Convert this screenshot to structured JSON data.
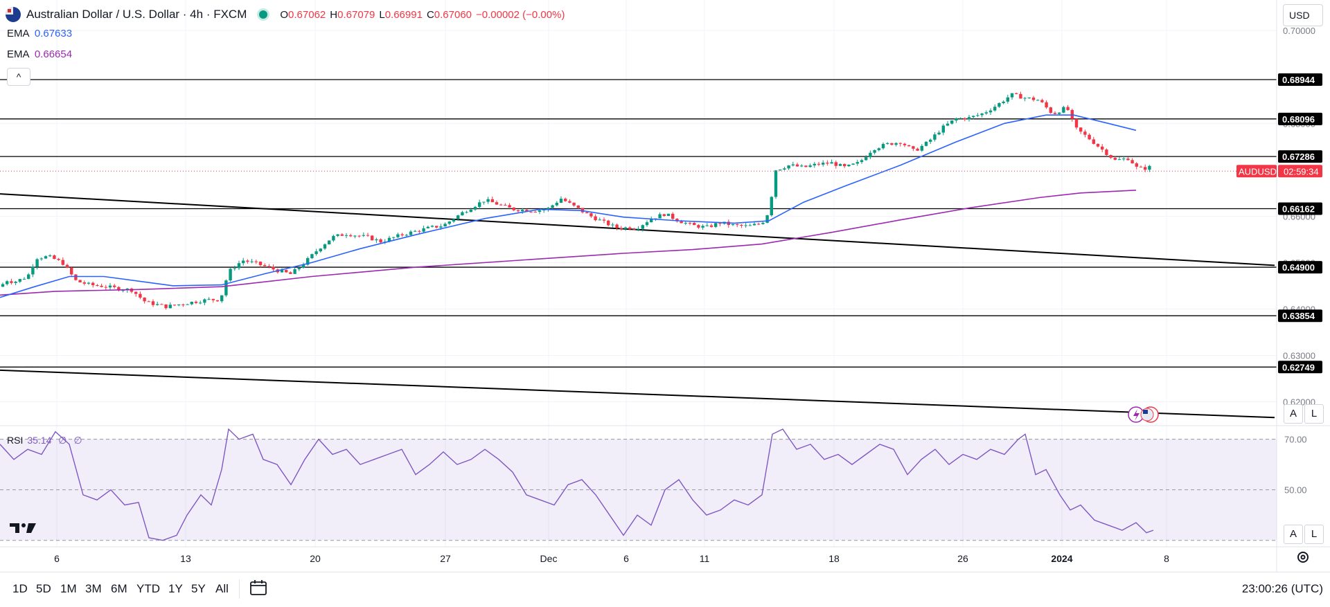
{
  "header": {
    "symbol_title": "Australian Dollar / U.S. Dollar · 4h · FXCM",
    "open_label": "O",
    "open": "0.67062",
    "high_label": "H",
    "high": "0.67079",
    "low_label": "L",
    "low": "0.66991",
    "close_label": "C",
    "close": "0.67060",
    "change": "−0.00002 (−0.00%)",
    "ema1_label": "EMA",
    "ema1_value": "0.67633",
    "ema1_color": "#2962ff",
    "ema2_label": "EMA",
    "ema2_value": "0.66654",
    "ema2_color": "#9c27b0",
    "collapse_glyph": "^",
    "currency": "USD"
  },
  "toolbar": {
    "timeframes": [
      "1D",
      "5D",
      "1M",
      "3M",
      "6M",
      "YTD",
      "1Y",
      "5Y",
      "All"
    ],
    "clock": "23:00:26 (UTC)",
    "auto_label": "A",
    "log_label": "L"
  },
  "rsi": {
    "label": "RSI",
    "value": "35.14",
    "extra1": "∅",
    "extra2": "∅"
  },
  "chart_data": [
    {
      "type": "candlestick",
      "title": "Australian Dollar / U.S. Dollar · 4h · FXCM",
      "x_ticks": [
        "6",
        "13",
        "20",
        "27",
        "Dec",
        "6",
        "11",
        "18",
        "26",
        "2024",
        "8"
      ],
      "y_ticks": [
        "0.70000",
        "0.68000",
        "0.66000",
        "0.65000",
        "0.64000",
        "0.63000",
        "0.62000"
      ],
      "ylim": [
        0.6156,
        0.7048
      ],
      "support_resistance_levels": [
        "0.68944",
        "0.68096",
        "0.67286",
        "0.66162",
        "0.64900",
        "0.63854",
        "0.62749"
      ],
      "current_price_label": "AUDUSD",
      "current_countdown": "02:59:34",
      "current_price": 0.6706,
      "price_path": [
        [
          0,
          0.6448
        ],
        [
          10,
          0.6462
        ],
        [
          20,
          0.6458
        ],
        [
          40,
          0.647
        ],
        [
          52,
          0.651
        ],
        [
          70,
          0.6513
        ],
        [
          90,
          0.65
        ],
        [
          110,
          0.646
        ],
        [
          130,
          0.6452
        ],
        [
          150,
          0.6449
        ],
        [
          170,
          0.6444
        ],
        [
          190,
          0.6441
        ],
        [
          210,
          0.6415
        ],
        [
          240,
          0.6405
        ],
        [
          270,
          0.6413
        ],
        [
          300,
          0.642
        ],
        [
          318,
          0.642
        ],
        [
          330,
          0.648
        ],
        [
          350,
          0.6505
        ],
        [
          370,
          0.6498
        ],
        [
          400,
          0.6483
        ],
        [
          420,
          0.6475
        ],
        [
          440,
          0.65
        ],
        [
          460,
          0.653
        ],
        [
          480,
          0.6555
        ],
        [
          500,
          0.6562
        ],
        [
          530,
          0.6555
        ],
        [
          550,
          0.6545
        ],
        [
          580,
          0.656
        ],
        [
          620,
          0.6575
        ],
        [
          640,
          0.658
        ],
        [
          670,
          0.661
        ],
        [
          700,
          0.6635
        ],
        [
          720,
          0.6625
        ],
        [
          740,
          0.6615
        ],
        [
          770,
          0.6612
        ],
        [
          790,
          0.6615
        ],
        [
          810,
          0.6638
        ],
        [
          830,
          0.662
        ],
        [
          850,
          0.6602
        ],
        [
          870,
          0.6588
        ],
        [
          890,
          0.6575
        ],
        [
          920,
          0.6575
        ],
        [
          940,
          0.6595
        ],
        [
          960,
          0.6605
        ],
        [
          980,
          0.659
        ],
        [
          1000,
          0.658
        ],
        [
          1020,
          0.6576
        ],
        [
          1040,
          0.6586
        ],
        [
          1060,
          0.658
        ],
        [
          1080,
          0.6578
        ],
        [
          1100,
          0.6585
        ],
        [
          1110,
          0.661
        ],
        [
          1120,
          0.67
        ],
        [
          1140,
          0.671
        ],
        [
          1160,
          0.6705
        ],
        [
          1180,
          0.6712
        ],
        [
          1200,
          0.6715
        ],
        [
          1220,
          0.6705
        ],
        [
          1240,
          0.6715
        ],
        [
          1260,
          0.6745
        ],
        [
          1280,
          0.6755
        ],
        [
          1300,
          0.676
        ],
        [
          1320,
          0.674
        ],
        [
          1340,
          0.676
        ],
        [
          1360,
          0.679
        ],
        [
          1380,
          0.681
        ],
        [
          1400,
          0.6812
        ],
        [
          1420,
          0.6822
        ],
        [
          1440,
          0.684
        ],
        [
          1460,
          0.6862
        ],
        [
          1480,
          0.6855
        ],
        [
          1500,
          0.685
        ],
        [
          1520,
          0.682
        ],
        [
          1540,
          0.6835
        ],
        [
          1552,
          0.679
        ],
        [
          1570,
          0.677
        ],
        [
          1590,
          0.6745
        ],
        [
          1610,
          0.672
        ],
        [
          1630,
          0.6725
        ],
        [
          1640,
          0.6705
        ],
        [
          1650,
          0.6702
        ],
        [
          1660,
          0.6706
        ]
      ],
      "ema_fast_path": [
        [
          0,
          0.6425
        ],
        [
          50,
          0.6448
        ],
        [
          100,
          0.647
        ],
        [
          150,
          0.647
        ],
        [
          200,
          0.646
        ],
        [
          250,
          0.645
        ],
        [
          320,
          0.6452
        ],
        [
          380,
          0.6475
        ],
        [
          450,
          0.65
        ],
        [
          520,
          0.653
        ],
        [
          600,
          0.656
        ],
        [
          700,
          0.6595
        ],
        [
          780,
          0.6615
        ],
        [
          840,
          0.6612
        ],
        [
          900,
          0.6598
        ],
        [
          980,
          0.659
        ],
        [
          1060,
          0.6585
        ],
        [
          1110,
          0.659
        ],
        [
          1160,
          0.663
        ],
        [
          1220,
          0.6665
        ],
        [
          1300,
          0.671
        ],
        [
          1380,
          0.676
        ],
        [
          1450,
          0.68
        ],
        [
          1510,
          0.6818
        ],
        [
          1550,
          0.6818
        ],
        [
          1600,
          0.68
        ],
        [
          1640,
          0.6785
        ]
      ],
      "ema_slow_path": [
        [
          0,
          0.643
        ],
        [
          80,
          0.6438
        ],
        [
          200,
          0.6442
        ],
        [
          320,
          0.6448
        ],
        [
          450,
          0.647
        ],
        [
          600,
          0.649
        ],
        [
          750,
          0.6505
        ],
        [
          900,
          0.652
        ],
        [
          1000,
          0.6528
        ],
        [
          1100,
          0.654
        ],
        [
          1200,
          0.6565
        ],
        [
          1300,
          0.6592
        ],
        [
          1400,
          0.6618
        ],
        [
          1500,
          0.664
        ],
        [
          1560,
          0.665
        ],
        [
          1640,
          0.6656
        ]
      ],
      "trendlines": [
        [
          [
            0,
            0.6648
          ],
          [
            1840,
            0.6494
          ]
        ],
        [
          [
            0,
            0.6268
          ],
          [
            1840,
            0.6166
          ]
        ]
      ]
    },
    {
      "type": "line",
      "title": "RSI",
      "y_ticks": [
        "70.00",
        "50.00"
      ],
      "ylim": [
        28,
        74
      ],
      "band": [
        30,
        70
      ],
      "series": [
        {
          "values": [
            [
              0,
              68
            ],
            [
              20,
              62
            ],
            [
              40,
              66
            ],
            [
              60,
              64
            ],
            [
              80,
              73
            ],
            [
              100,
              68
            ],
            [
              120,
              48
            ],
            [
              140,
              46
            ],
            [
              160,
              50
            ],
            [
              180,
              44
            ],
            [
              200,
              45
            ],
            [
              215,
              31
            ],
            [
              235,
              30
            ],
            [
              255,
              32
            ],
            [
              270,
              40
            ],
            [
              290,
              48
            ],
            [
              305,
              44
            ],
            [
              320,
              58
            ],
            [
              330,
              74
            ],
            [
              345,
              70
            ],
            [
              365,
              72
            ],
            [
              380,
              62
            ],
            [
              400,
              60
            ],
            [
              420,
              52
            ],
            [
              440,
              62
            ],
            [
              460,
              70
            ],
            [
              480,
              64
            ],
            [
              500,
              66
            ],
            [
              520,
              60
            ],
            [
              540,
              62
            ],
            [
              560,
              64
            ],
            [
              580,
              66
            ],
            [
              600,
              56
            ],
            [
              620,
              60
            ],
            [
              640,
              65
            ],
            [
              660,
              60
            ],
            [
              680,
              62
            ],
            [
              700,
              66
            ],
            [
              720,
              62
            ],
            [
              740,
              57
            ],
            [
              760,
              48
            ],
            [
              780,
              46
            ],
            [
              800,
              44
            ],
            [
              820,
              52
            ],
            [
              840,
              54
            ],
            [
              860,
              48
            ],
            [
              880,
              40
            ],
            [
              900,
              32
            ],
            [
              920,
              40
            ],
            [
              940,
              36
            ],
            [
              960,
              50
            ],
            [
              980,
              54
            ],
            [
              1000,
              46
            ],
            [
              1020,
              40
            ],
            [
              1040,
              42
            ],
            [
              1060,
              46
            ],
            [
              1080,
              44
            ],
            [
              1100,
              48
            ],
            [
              1115,
              72
            ],
            [
              1130,
              74
            ],
            [
              1150,
              66
            ],
            [
              1170,
              68
            ],
            [
              1190,
              62
            ],
            [
              1210,
              64
            ],
            [
              1230,
              60
            ],
            [
              1250,
              64
            ],
            [
              1270,
              68
            ],
            [
              1290,
              66
            ],
            [
              1310,
              56
            ],
            [
              1330,
              62
            ],
            [
              1350,
              66
            ],
            [
              1370,
              60
            ],
            [
              1390,
              64
            ],
            [
              1410,
              62
            ],
            [
              1430,
              66
            ],
            [
              1450,
              64
            ],
            [
              1470,
              70
            ],
            [
              1480,
              72
            ],
            [
              1495,
              56
            ],
            [
              1510,
              58
            ],
            [
              1530,
              48
            ],
            [
              1545,
              42
            ],
            [
              1560,
              44
            ],
            [
              1580,
              38
            ],
            [
              1600,
              36
            ],
            [
              1620,
              34
            ],
            [
              1640,
              37
            ],
            [
              1655,
              33
            ],
            [
              1665,
              34
            ]
          ]
        }
      ]
    }
  ]
}
